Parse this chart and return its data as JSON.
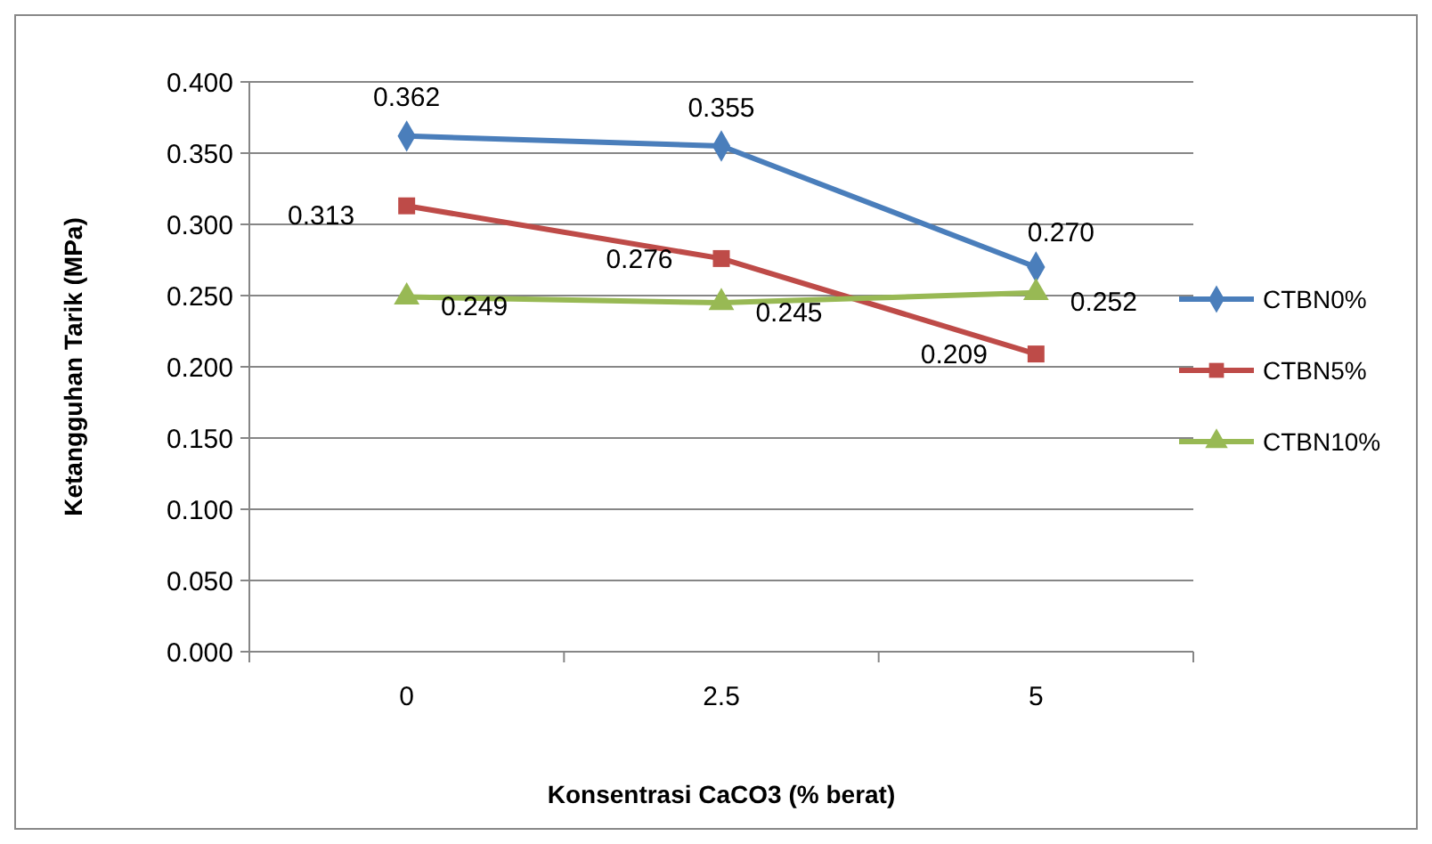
{
  "chart_data": {
    "type": "line",
    "xlabel": "Konsentrasi CaCO3 (% berat)",
    "ylabel": "Ketangguhan Tarik (MPa)",
    "categories": [
      "0",
      "2.5",
      "5"
    ],
    "ylim": [
      0,
      0.4
    ],
    "yticks": [
      {
        "value": 0,
        "label": "0.000"
      },
      {
        "value": 0.05,
        "label": "0.050"
      },
      {
        "value": 0.1,
        "label": "0.100"
      },
      {
        "value": 0.15,
        "label": "0.150"
      },
      {
        "value": 0.2,
        "label": "0.200"
      },
      {
        "value": 0.25,
        "label": "0.250"
      },
      {
        "value": 0.3,
        "label": "0.300"
      },
      {
        "value": 0.35,
        "label": "0.350"
      },
      {
        "value": 0.4,
        "label": "0.400"
      }
    ],
    "grid": "y",
    "legend": "right",
    "series": [
      {
        "name": "CTBN0%",
        "color": "#4a7ebb",
        "marker": "diamond",
        "values": [
          0.362,
          0.355,
          0.27
        ],
        "value_labels": [
          "0.362",
          "0.355",
          "0.270"
        ]
      },
      {
        "name": "CTBN5%",
        "color": "#be4b48",
        "marker": "square",
        "values": [
          0.313,
          0.276,
          0.209
        ],
        "value_labels": [
          "0.313",
          "0.276",
          "0.209"
        ]
      },
      {
        "name": "CTBN10%",
        "color": "#98b954",
        "marker": "triangle",
        "values": [
          0.249,
          0.245,
          0.252
        ],
        "value_labels": [
          "0.249",
          "0.245",
          "0.252"
        ]
      }
    ]
  }
}
